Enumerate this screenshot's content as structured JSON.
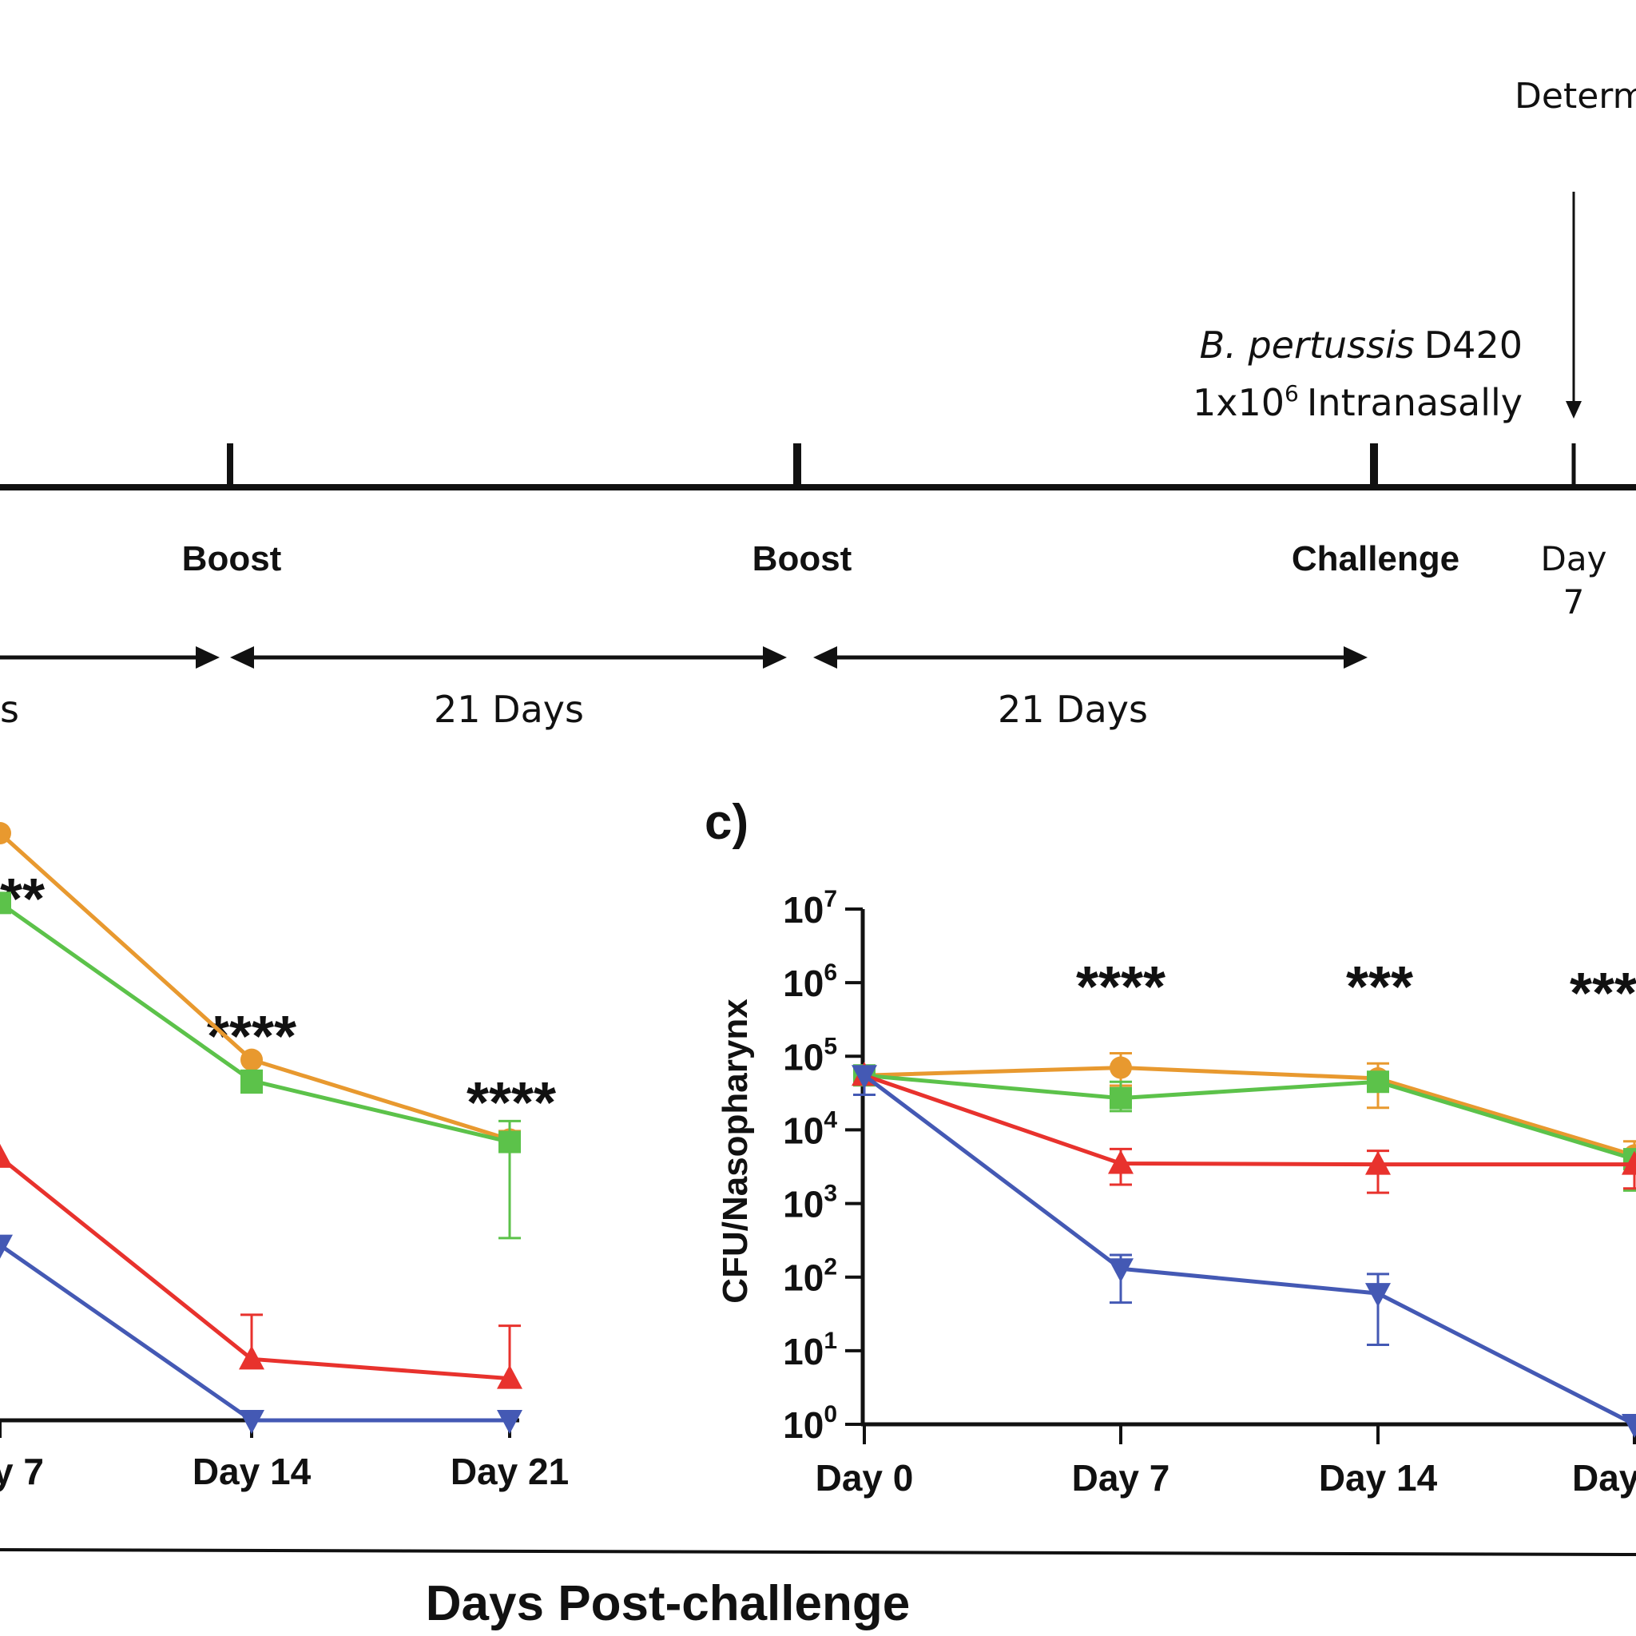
{
  "timeline": {
    "determ_label": "Determ",
    "challenge_note_italic": "B. pertussis",
    "challenge_note_strain": "D420",
    "challenge_note_dose": "1x10",
    "challenge_note_dose_exp": "6",
    "challenge_note_route": "Intranasally",
    "events": [
      "Boost",
      "Boost",
      "Challenge"
    ],
    "day_label": "Day",
    "day_value": "7",
    "intervals": [
      "s",
      "21 Days",
      "21 Days"
    ]
  },
  "panel_b": {
    "x_ticks": [
      "y 7",
      "Day 14",
      "Day 21"
    ],
    "significance": [
      "**",
      "****",
      "****"
    ]
  },
  "panel_c": {
    "label": "c)",
    "ylabel": "CFU/Nasopharynx",
    "x_ticks": [
      "Day 0",
      "Day 7",
      "Day 14",
      "Day"
    ],
    "y_tick_base": "10",
    "y_tick_exps": [
      "0",
      "1",
      "2",
      "3",
      "4",
      "5",
      "6",
      "7"
    ],
    "significance": [
      "****",
      "***",
      "***"
    ]
  },
  "shared_xlabel": "Days Post-challenge",
  "colors": {
    "orange": "#e8992f",
    "green": "#5cc24a",
    "red": "#e8322d",
    "blue": "#4459b4",
    "axis": "#111111"
  },
  "chart_data": [
    {
      "type": "line",
      "panel": "b",
      "x": [
        "Day 7",
        "Day 14",
        "Day 21"
      ],
      "y_scale": "log",
      "series": [
        {
          "color": "orange",
          "marker": "circle",
          "values": [
            5000000.0,
            13000.0,
            1600.0
          ],
          "err_low": [
            null,
            null,
            null
          ],
          "err_high": [
            null,
            null,
            2000.0
          ]
        },
        {
          "color": "green",
          "marker": "square",
          "values": [
            800000.0,
            7500.0,
            1500.0
          ],
          "err_low": [
            null,
            5500.0,
            120.0
          ],
          "err_high": [
            null,
            null,
            2600.0
          ]
        },
        {
          "color": "red",
          "marker": "triangle-up",
          "values": [
            1000.0,
            5.0,
            3.0
          ],
          "err_low": [
            null,
            null,
            null
          ],
          "err_high": [
            null,
            16.0,
            12.0
          ]
        },
        {
          "color": "blue",
          "marker": "triangle-down",
          "values": [
            100.0,
            1.0,
            1.0
          ],
          "err_low": [
            null,
            null,
            null
          ],
          "err_high": [
            null,
            null,
            null
          ]
        }
      ]
    },
    {
      "type": "line",
      "panel": "c",
      "x": [
        "Day 0",
        "Day 7",
        "Day 14",
        "Day 21"
      ],
      "y_scale": "log",
      "ylim": [
        1,
        10000000
      ],
      "ylabel": "CFU/Nasopharynx",
      "series": [
        {
          "color": "orange",
          "marker": "circle",
          "values": [
            55000,
            70000,
            50000,
            4500
          ],
          "err_low": [
            null,
            40000,
            20000,
            null
          ],
          "err_high": [
            null,
            110000,
            80000,
            7000
          ]
        },
        {
          "color": "green",
          "marker": "square",
          "values": [
            55000,
            27000,
            45000,
            4000
          ],
          "err_low": [
            null,
            18000,
            null,
            1500
          ],
          "err_high": [
            null,
            45000,
            null,
            null
          ]
        },
        {
          "color": "red",
          "marker": "triangle-up",
          "values": [
            55000,
            3500,
            3400,
            3400
          ],
          "err_low": [
            null,
            1800,
            1400,
            1600
          ],
          "err_high": [
            null,
            5500,
            5200,
            null
          ]
        },
        {
          "color": "blue",
          "marker": "triangle-down",
          "values": [
            55000,
            130,
            60,
            1
          ],
          "err_low": [
            30000,
            45,
            12,
            null
          ],
          "err_high": [
            null,
            200,
            110,
            null
          ]
        }
      ]
    }
  ]
}
